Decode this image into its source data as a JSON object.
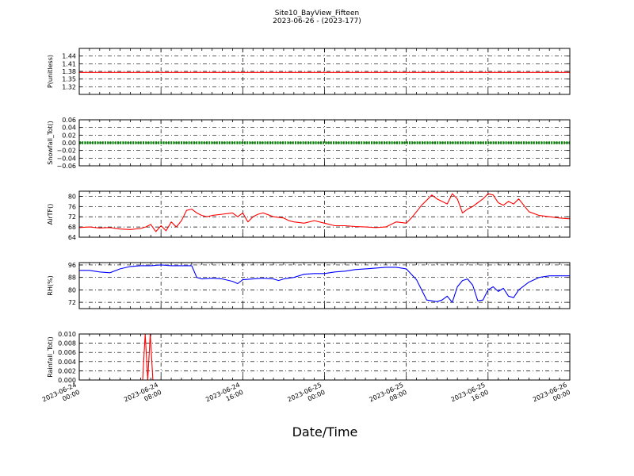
{
  "figure": {
    "title": "Site10_BayView_Fifteen",
    "subtitle": "2023-06-26 - (2023-177)",
    "xlabel": "Date/Time",
    "x_tick_labels": [
      [
        "2023-06-24",
        "00:00"
      ],
      [
        "2023-06-24",
        "08:00"
      ],
      [
        "2023-06-24",
        "16:00"
      ],
      [
        "2023-06-25",
        "00:00"
      ],
      [
        "2023-06-25",
        "08:00"
      ],
      [
        "2023-06-25",
        "16:00"
      ],
      [
        "2023-06-26",
        "00:00"
      ]
    ]
  },
  "chart_data": [
    {
      "type": "line",
      "ylabel": "P(unitless)",
      "ylim": [
        1.29,
        1.47
      ],
      "yticks": [
        "1.44",
        "1.41",
        "1.38",
        "1.35",
        "1.32"
      ],
      "grid": true,
      "color": "#ff0000",
      "x_hours": [
        0,
        48
      ],
      "y": [
        1.376,
        1.376
      ]
    },
    {
      "type": "line",
      "ylabel": "Snowfall_Tot()",
      "ylim": [
        -0.06,
        0.06
      ],
      "yticks": [
        "0.06",
        "0.04",
        "0.02",
        "0.00",
        "−0.02",
        "−0.04",
        "−0.06"
      ],
      "grid": true,
      "color": "#008000",
      "marker": "dot",
      "x_hours": [
        0,
        48
      ],
      "y": [
        0.0,
        0.0
      ]
    },
    {
      "type": "line",
      "ylabel": "AirTF()",
      "ylim": [
        64,
        82
      ],
      "yticks": [
        "80",
        "76",
        "72",
        "68",
        "64"
      ],
      "grid": true,
      "color": "#ff0000",
      "x_hours": [
        0,
        1,
        2,
        3,
        4,
        5,
        6,
        6.5,
        7,
        7.5,
        8,
        8.5,
        9,
        9.5,
        10,
        10.5,
        11,
        11.5,
        12,
        12.5,
        13,
        14,
        15,
        15.5,
        16,
        16.5,
        17,
        17.5,
        18,
        19,
        20,
        20.5,
        21,
        22,
        23,
        24,
        25,
        26,
        27,
        28,
        29,
        30,
        31,
        32,
        32.5,
        33,
        33.5,
        34,
        34.5,
        35,
        35.5,
        36,
        36.5,
        37,
        37.5,
        38,
        38.5,
        39,
        39.5,
        40,
        40.5,
        41,
        41.5,
        42,
        42.5,
        43,
        44,
        45,
        46,
        47,
        48
      ],
      "y": [
        67.8,
        68.0,
        67.6,
        67.8,
        67.2,
        67.0,
        67.4,
        68.0,
        69.0,
        66.2,
        68.5,
        66.5,
        70.0,
        68.0,
        70.5,
        74.5,
        75.0,
        73.5,
        72.5,
        72.0,
        72.5,
        73.0,
        73.5,
        72.0,
        73.5,
        70.0,
        72.0,
        73.0,
        73.5,
        72.0,
        71.5,
        70.5,
        70.0,
        69.5,
        70.5,
        69.5,
        68.5,
        68.5,
        68.2,
        68.0,
        67.8,
        68.0,
        70.0,
        69.5,
        71.5,
        74.0,
        76.5,
        78.5,
        80.5,
        79.0,
        78.0,
        77.0,
        81.0,
        79.0,
        73.5,
        75.0,
        76.0,
        77.5,
        79.0,
        81.0,
        80.5,
        77.5,
        76.5,
        78.0,
        77.0,
        79.0,
        74.0,
        72.5,
        72.0,
        71.5,
        71.2
      ]
    },
    {
      "type": "line",
      "ylabel": "RH(%)",
      "ylim": [
        68,
        97.5
      ],
      "yticks": [
        "96",
        "88",
        "80",
        "72"
      ],
      "grid": true,
      "color": "#0000ff",
      "x_hours": [
        0,
        1,
        2,
        3,
        4,
        5,
        6,
        7,
        8,
        9,
        10,
        11,
        11.5,
        12,
        13,
        14,
        15,
        15.5,
        16,
        17,
        18,
        19,
        19.5,
        20,
        21,
        22,
        23,
        24,
        25,
        26,
        27,
        28,
        29,
        30,
        31,
        32,
        32.5,
        33,
        33.5,
        34,
        34.5,
        35,
        35.5,
        36,
        36.5,
        37,
        37.5,
        38,
        38.5,
        39,
        39.5,
        40,
        40.5,
        41,
        41.5,
        42,
        42.5,
        43,
        44,
        45,
        46,
        47,
        48
      ],
      "y": [
        92.5,
        92.5,
        91.5,
        91.0,
        93.5,
        95.0,
        95.5,
        95.5,
        96.0,
        95.5,
        95.5,
        95.5,
        88.0,
        87.0,
        87.5,
        87.0,
        85.5,
        84.0,
        86.5,
        87.0,
        87.5,
        87.0,
        86.0,
        87.0,
        88.0,
        90.0,
        90.5,
        90.5,
        91.5,
        92.0,
        93.0,
        93.5,
        94.0,
        94.5,
        94.5,
        93.5,
        90.0,
        86.5,
        80.0,
        73.5,
        73.0,
        72.5,
        73.5,
        76.0,
        72.0,
        82.0,
        86.0,
        87.0,
        83.0,
        73.0,
        73.5,
        80.0,
        82.0,
        79.0,
        81.0,
        76.0,
        75.0,
        80.0,
        85.0,
        88.0,
        89.0,
        89.0,
        89.0
      ]
    },
    {
      "type": "line",
      "ylabel": "Rainfall_Tot()",
      "ylim": [
        0,
        0.01
      ],
      "yticks": [
        "0.010",
        "0.008",
        "0.006",
        "0.004",
        "0.002",
        "0.000"
      ],
      "grid": true,
      "color": "#ff0000",
      "x_hours": [
        0,
        6.2,
        6.45,
        6.7,
        6.95,
        7.2,
        48
      ],
      "y": [
        0,
        0,
        0.01,
        0,
        0.01,
        0,
        0
      ]
    }
  ]
}
